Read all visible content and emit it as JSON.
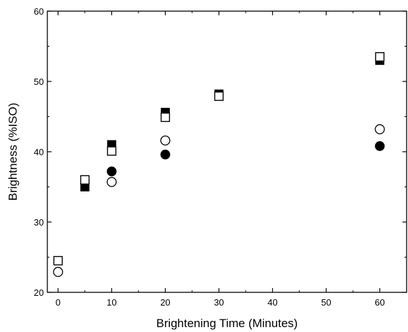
{
  "chart_data": {
    "type": "scatter",
    "title": "",
    "xlabel": "Brightening Time (Minutes)",
    "ylabel": "Brightness (%ISO)",
    "xlim": [
      -2,
      65
    ],
    "ylim": [
      20,
      60
    ],
    "x_ticks": [
      0,
      10,
      20,
      30,
      40,
      50,
      60
    ],
    "y_ticks": [
      20,
      30,
      40,
      50,
      60
    ],
    "legend": "none",
    "grid": false,
    "series": [
      {
        "marker": "filled-square",
        "points": [
          [
            5,
            35.0
          ],
          [
            10,
            41.0
          ],
          [
            20,
            45.6
          ],
          [
            30,
            48.2
          ],
          [
            60,
            53.0
          ]
        ]
      },
      {
        "marker": "open-square",
        "points": [
          [
            0,
            24.5
          ],
          [
            5,
            36.0
          ],
          [
            10,
            40.1
          ],
          [
            20,
            44.9
          ],
          [
            30,
            47.9
          ],
          [
            60,
            53.5
          ]
        ]
      },
      {
        "marker": "filled-circle",
        "points": [
          [
            10,
            37.2
          ],
          [
            20,
            39.6
          ],
          [
            60,
            40.8
          ]
        ]
      },
      {
        "marker": "open-circle",
        "points": [
          [
            0,
            22.9
          ],
          [
            10,
            35.7
          ],
          [
            20,
            41.6
          ],
          [
            60,
            43.2
          ]
        ]
      }
    ]
  }
}
